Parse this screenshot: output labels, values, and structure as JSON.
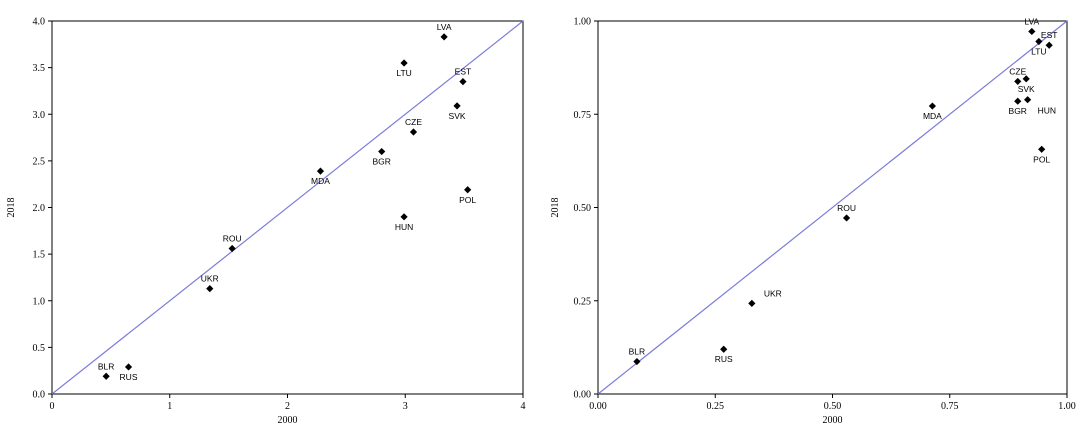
{
  "chart_data": [
    {
      "type": "scatter",
      "xlabel": "2000",
      "ylabel": "2018",
      "xlim": [
        0,
        4
      ],
      "ylim": [
        0,
        4
      ],
      "x_ticks": [
        "0",
        "1",
        "2",
        "3",
        "4"
      ],
      "y_ticks": [
        "0.0",
        "0.5",
        "1.0",
        "1.5",
        "2.0",
        "2.5",
        "3.0",
        "3.5",
        "4.0"
      ],
      "reference_line": "45-degree line y = x",
      "line_color": "#7b7bdc",
      "marker_color": "#000000",
      "points": [
        {
          "label": "LVA",
          "x": 3.33,
          "y": 3.83,
          "label_pos": "above"
        },
        {
          "label": "LTU",
          "x": 2.99,
          "y": 3.55,
          "label_pos": "below"
        },
        {
          "label": "EST",
          "x": 3.49,
          "y": 3.35,
          "label_pos": "above"
        },
        {
          "label": "SVK",
          "x": 3.44,
          "y": 3.09,
          "label_pos": "below"
        },
        {
          "label": "CZE",
          "x": 3.07,
          "y": 2.81,
          "label_pos": "above"
        },
        {
          "label": "BGR",
          "x": 2.8,
          "y": 2.6,
          "label_pos": "below"
        },
        {
          "label": "MDA",
          "x": 2.28,
          "y": 2.39,
          "label_pos": "below"
        },
        {
          "label": "POL",
          "x": 3.53,
          "y": 2.19,
          "label_pos": "below"
        },
        {
          "label": "HUN",
          "x": 2.99,
          "y": 1.9,
          "label_pos": "below"
        },
        {
          "label": "ROU",
          "x": 1.53,
          "y": 1.56,
          "label_pos": "above"
        },
        {
          "label": "UKR",
          "x": 1.34,
          "y": 1.13,
          "label_pos": "above"
        },
        {
          "label": "BLR",
          "x": 0.46,
          "y": 0.19,
          "label_pos": "above"
        },
        {
          "label": "RUS",
          "x": 0.65,
          "y": 0.29,
          "label_pos": "below"
        }
      ]
    },
    {
      "type": "scatter",
      "xlabel": "2000",
      "ylabel": "2018",
      "xlim": [
        0,
        1
      ],
      "ylim": [
        0,
        1
      ],
      "x_ticks": [
        "0.00",
        "0.25",
        "0.50",
        "0.75",
        "1.00"
      ],
      "y_ticks": [
        "0.00",
        "0.25",
        "0.50",
        "0.75",
        "1.00"
      ],
      "reference_line": "45-degree line y = x",
      "line_color": "#7b7bdc",
      "marker_color": "#000000",
      "points": [
        {
          "label": "LVA",
          "x": 0.925,
          "y": 0.972,
          "label_pos": "above"
        },
        {
          "label": "EST",
          "x": 0.962,
          "y": 0.935,
          "label_pos": "above"
        },
        {
          "label": "LTU",
          "x": 0.94,
          "y": 0.945,
          "label_pos": "below"
        },
        {
          "label": "CZE",
          "x": 0.895,
          "y": 0.838,
          "label_pos": "above"
        },
        {
          "label": "SVK",
          "x": 0.913,
          "y": 0.845,
          "label_pos": "below"
        },
        {
          "label": "BGR",
          "x": 0.895,
          "y": 0.785,
          "label_pos": "below"
        },
        {
          "label": "HUN",
          "x": 0.916,
          "y": 0.789,
          "label_pos": "right-below"
        },
        {
          "label": "MDA",
          "x": 0.713,
          "y": 0.772,
          "label_pos": "below"
        },
        {
          "label": "POL",
          "x": 0.946,
          "y": 0.656,
          "label_pos": "below"
        },
        {
          "label": "ROU",
          "x": 0.53,
          "y": 0.472,
          "label_pos": "above"
        },
        {
          "label": "UKR",
          "x": 0.328,
          "y": 0.243,
          "label_pos": "above-right"
        },
        {
          "label": "RUS",
          "x": 0.268,
          "y": 0.12,
          "label_pos": "below"
        },
        {
          "label": "BLR",
          "x": 0.083,
          "y": 0.087,
          "label_pos": "above"
        }
      ]
    }
  ]
}
